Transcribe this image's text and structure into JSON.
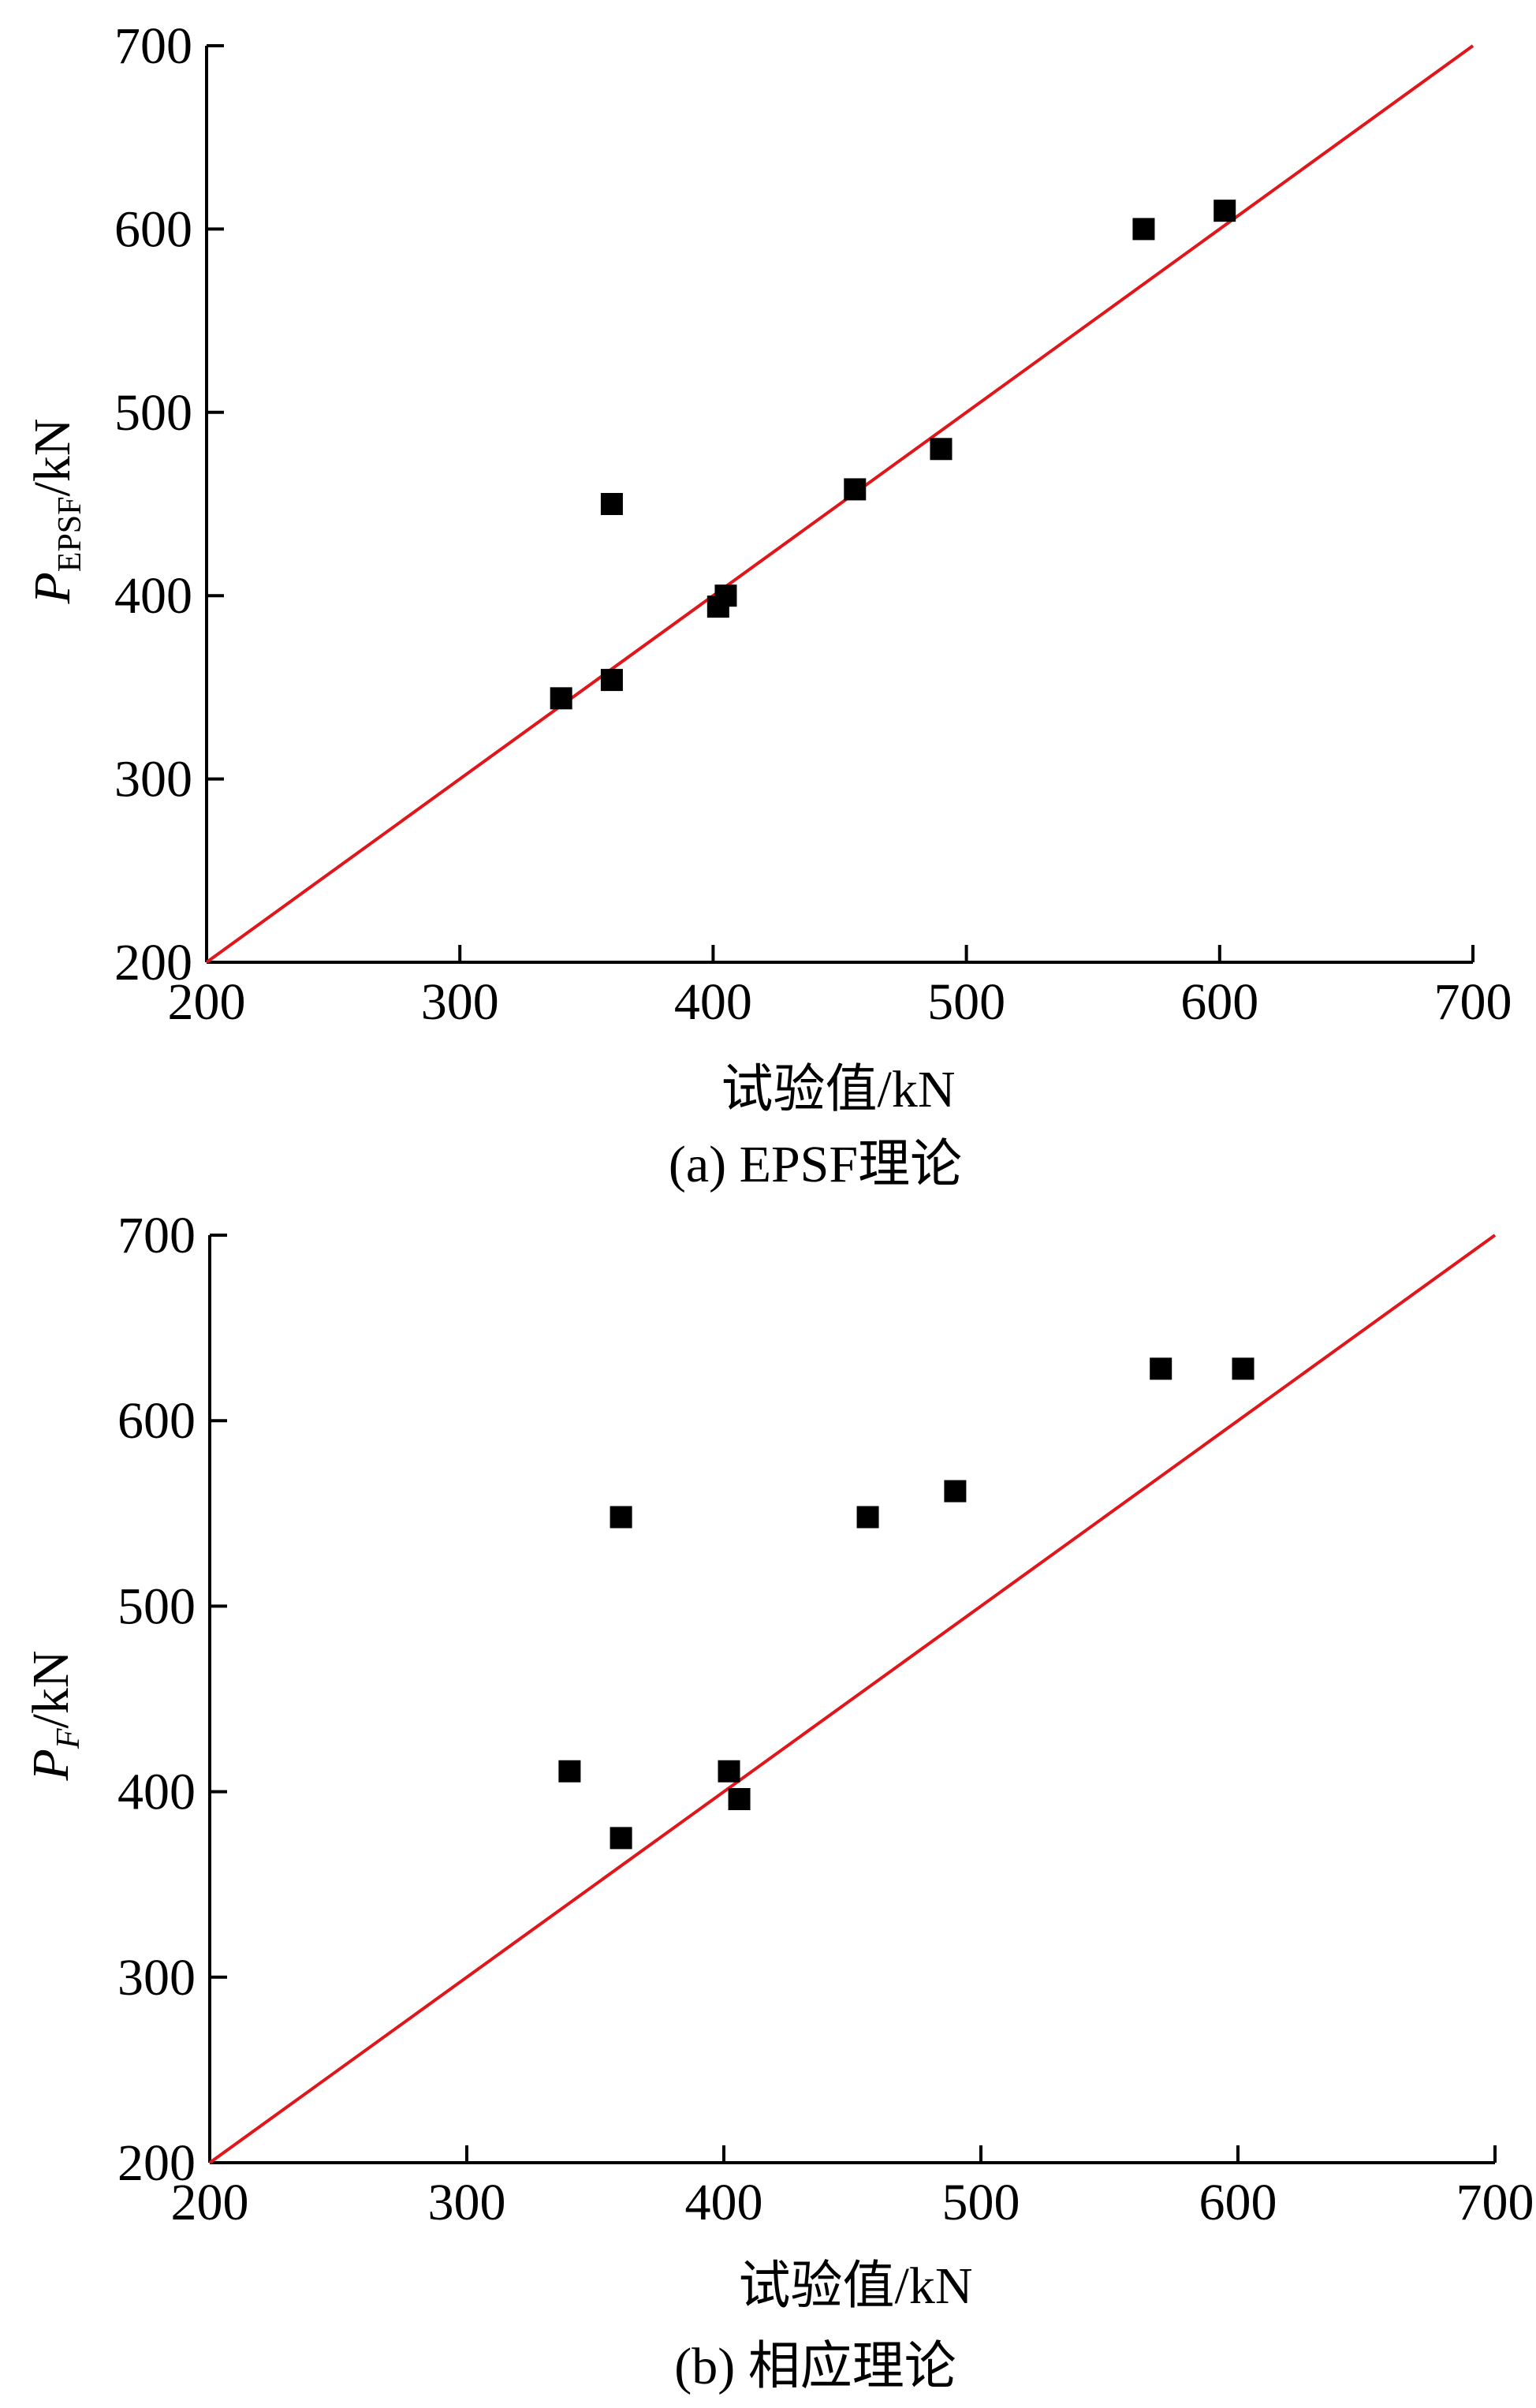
{
  "chart_data": [
    {
      "type": "scatter",
      "panel": "a",
      "caption": "(a) EPSF理论",
      "xlabel": "试验值/kN",
      "ylabel": {
        "main": "P",
        "subscript": "EPSF",
        "suffix": "/kN"
      },
      "xlim": [
        200,
        700
      ],
      "ylim": [
        200,
        700
      ],
      "x_ticks": [
        200,
        300,
        400,
        500,
        600,
        700
      ],
      "y_ticks": [
        200,
        300,
        400,
        500,
        600,
        700
      ],
      "grid": false,
      "marker": "square",
      "marker_color": "#000000",
      "reference_line": {
        "from": [
          200,
          200
        ],
        "to": [
          700,
          700
        ],
        "color": "#e0161b"
      },
      "points": [
        {
          "x": 340,
          "y": 344
        },
        {
          "x": 360,
          "y": 354
        },
        {
          "x": 360,
          "y": 450
        },
        {
          "x": 402,
          "y": 394
        },
        {
          "x": 405,
          "y": 400
        },
        {
          "x": 456,
          "y": 458
        },
        {
          "x": 490,
          "y": 480
        },
        {
          "x": 570,
          "y": 600
        },
        {
          "x": 602,
          "y": 610
        }
      ]
    },
    {
      "type": "scatter",
      "panel": "b",
      "caption": "(b) 相应理论",
      "xlabel": "试验值/kN",
      "ylabel": {
        "main": "P",
        "subscript": "F",
        "suffix": "/kN"
      },
      "xlim": [
        200,
        700
      ],
      "ylim": [
        200,
        700
      ],
      "x_ticks": [
        200,
        300,
        400,
        500,
        600,
        700
      ],
      "y_ticks": [
        200,
        300,
        400,
        500,
        600,
        700
      ],
      "grid": false,
      "marker": "square",
      "marker_color": "#000000",
      "reference_line": {
        "from": [
          200,
          200
        ],
        "to": [
          700,
          700
        ],
        "color": "#e0161b"
      },
      "points": [
        {
          "x": 340,
          "y": 411
        },
        {
          "x": 360,
          "y": 375
        },
        {
          "x": 360,
          "y": 548
        },
        {
          "x": 402,
          "y": 411
        },
        {
          "x": 406,
          "y": 396
        },
        {
          "x": 456,
          "y": 548
        },
        {
          "x": 490,
          "y": 562
        },
        {
          "x": 570,
          "y": 628
        },
        {
          "x": 602,
          "y": 628
        }
      ]
    }
  ]
}
